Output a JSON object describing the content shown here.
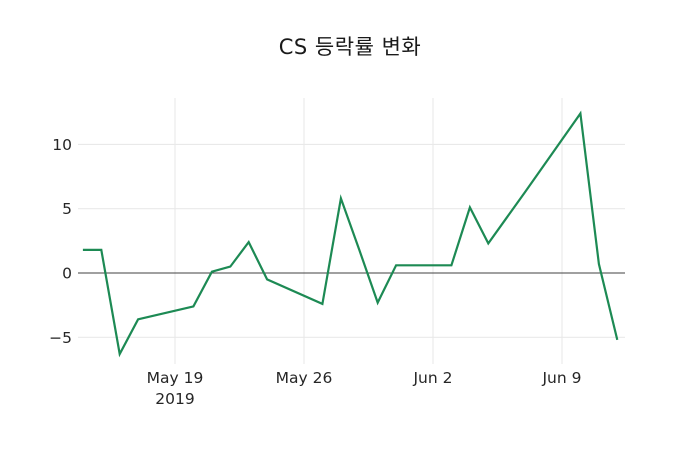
{
  "chart_data": {
    "type": "line",
    "title": "CS 등락률 변화",
    "xlabel": "",
    "ylabel": "",
    "legend": "none",
    "grid": "on",
    "background_color": "#ffffff",
    "line_color": "#1d8a54",
    "grid_color": "#e9e9e9",
    "zero_line_color": "#404040",
    "text_color": "#262626",
    "ylim": [
      -6.5,
      13.6
    ],
    "xlim": [
      "2019-05-13",
      "2019-06-13"
    ],
    "yticks": [
      {
        "v": -5,
        "label": "−5"
      },
      {
        "v": 0,
        "label": "0"
      },
      {
        "v": 5,
        "label": "5"
      },
      {
        "v": 10,
        "label": "10"
      }
    ],
    "xticks": [
      {
        "date": "2019-05-19",
        "label": "May 19",
        "sublabel": "2019"
      },
      {
        "date": "2019-05-26",
        "label": "May 26",
        "sublabel": ""
      },
      {
        "date": "2019-06-02",
        "label": "Jun 2",
        "sublabel": ""
      },
      {
        "date": "2019-06-09",
        "label": "Jun 9",
        "sublabel": ""
      }
    ],
    "series": [
      {
        "name": "CS 등락률",
        "x": [
          "2019-05-14",
          "2019-05-15",
          "2019-05-16",
          "2019-05-17",
          "2019-05-20",
          "2019-05-21",
          "2019-05-22",
          "2019-05-23",
          "2019-05-24",
          "2019-05-27",
          "2019-05-28",
          "2019-05-29",
          "2019-05-30",
          "2019-05-31",
          "2019-06-03",
          "2019-06-04",
          "2019-06-05",
          "2019-06-06",
          "2019-06-07",
          "2019-06-10",
          "2019-06-11",
          "2019-06-12"
        ],
        "y": [
          1.8,
          1.8,
          -6.3,
          -3.6,
          -2.6,
          0.1,
          0.5,
          2.4,
          -0.5,
          -2.4,
          5.8,
          1.8,
          -2.3,
          0.6,
          0.6,
          5.1,
          2.3,
          4.3,
          6.3,
          12.4,
          0.7,
          -5.2
        ]
      }
    ]
  }
}
